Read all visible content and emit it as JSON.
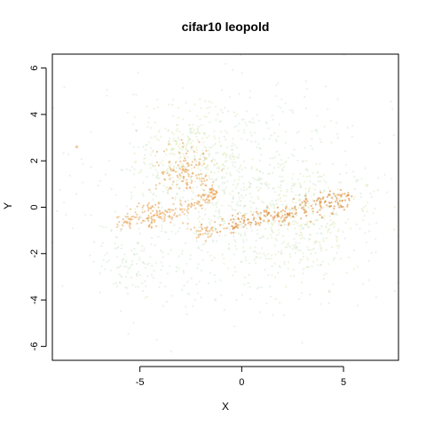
{
  "chart_data": {
    "type": "scatter",
    "title": "cifar10 leopold",
    "xlabel": "X",
    "ylabel": "Y",
    "xlim": [
      -9.3,
      7.7
    ],
    "ylim": [
      -6.6,
      6.6
    ],
    "xticks": [
      -5,
      0,
      5
    ],
    "yticks": [
      -6,
      -4,
      -2,
      0,
      2,
      4,
      6
    ],
    "grid": false,
    "colors": {
      "sparse": "#b9ddb9",
      "medium": "#d8e3a0",
      "dense": "#e8a050",
      "densest": "#e08a35"
    },
    "clusters": [
      {
        "name": "",
        "cx": 0.0,
        "cy": 0.5,
        "sx": 3.6,
        "sy": 2.4,
        "n": 900,
        "density": "sparse"
      },
      {
        "name": "",
        "cx": -2.6,
        "cy": 2.2,
        "sx": 1.2,
        "sy": 1.0,
        "n": 260,
        "density": "medium"
      },
      {
        "name": "",
        "cx": -2.8,
        "cy": 1.6,
        "sx": 0.7,
        "sy": 0.5,
        "n": 120,
        "density": "dense"
      },
      {
        "name": "",
        "cx": 2.8,
        "cy": -0.5,
        "sx": 1.9,
        "sy": 1.2,
        "n": 320,
        "density": "medium"
      },
      {
        "name": "",
        "cx": -4.5,
        "cy": -0.3,
        "sx": 0.6,
        "sy": 0.3,
        "n": 60,
        "density": "dense"
      },
      {
        "name": "",
        "cx": -1.8,
        "cy": -1.0,
        "sx": 0.4,
        "sy": 0.2,
        "n": 40,
        "density": "dense"
      },
      {
        "name": "",
        "cx": -5.6,
        "cy": -2.5,
        "sx": 1.0,
        "sy": 0.9,
        "n": 90,
        "density": "sparse"
      }
    ],
    "bands": [
      {
        "name": "",
        "points": [
          [
            -6.2,
            -0.7
          ],
          [
            -5.0,
            -0.5
          ],
          [
            -3.5,
            -0.2
          ],
          [
            -2.5,
            0.0
          ],
          [
            -1.8,
            0.4
          ],
          [
            -1.3,
            0.8
          ]
        ],
        "width": 0.18,
        "n": 140,
        "density": "dense"
      },
      {
        "name": "",
        "points": [
          [
            -0.8,
            -0.8
          ],
          [
            0.5,
            -0.6
          ],
          [
            1.5,
            -0.4
          ],
          [
            2.5,
            -0.2
          ],
          [
            3.5,
            0.1
          ],
          [
            4.5,
            0.3
          ],
          [
            5.3,
            0.35
          ]
        ],
        "width": 0.22,
        "n": 220,
        "density": "densest"
      },
      {
        "name": "",
        "points": [
          [
            -2.0,
            1.2
          ],
          [
            -1.6,
            0.8
          ],
          [
            -1.3,
            0.4
          ]
        ],
        "width": 0.12,
        "n": 20,
        "density": "dense"
      }
    ],
    "outliers": [
      {
        "x": -8.1,
        "y": 2.6
      }
    ]
  }
}
